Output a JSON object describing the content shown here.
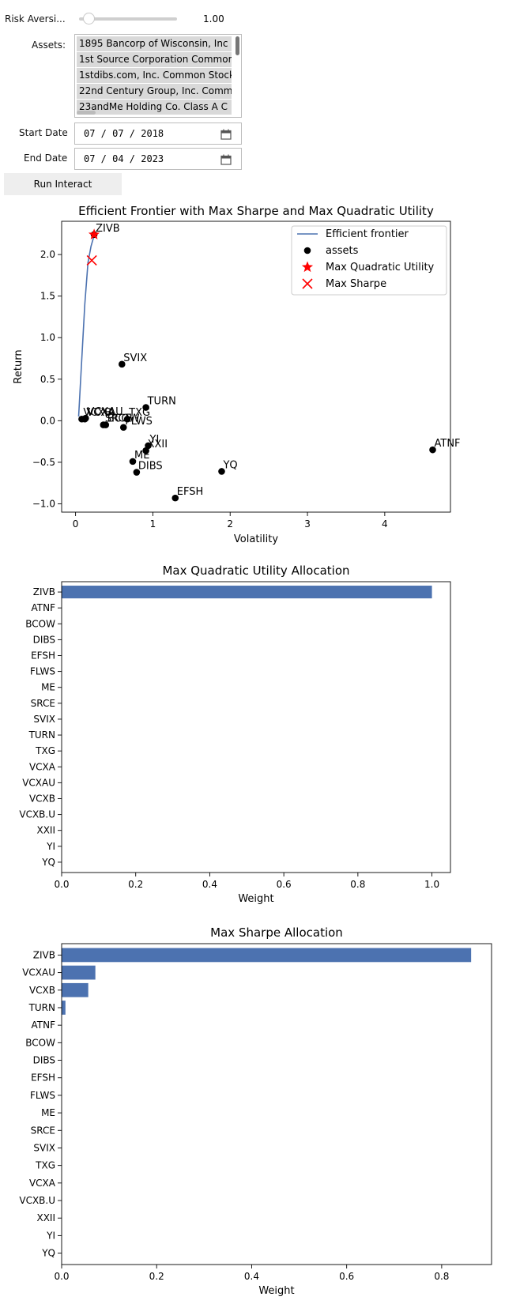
{
  "controls": {
    "risk_label": "Risk Aversi...",
    "risk_value": "1.00",
    "risk_fraction": 0.1,
    "assets_label": "Assets:",
    "assets": [
      "1895 Bancorp of Wisconsin, Inc",
      "1st Source Corporation Common",
      "1stdibs.com, Inc. Common Stock",
      "22nd Century Group, Inc. Comm",
      "23andMe Holding Co. Class A C"
    ],
    "start_label": "Start Date",
    "start_value": "07 / 07 / 2018",
    "end_label": "End Date",
    "end_value": "07 / 04 / 2023",
    "run_label": "Run Interact",
    "calendar_icon": "calendar-icon"
  },
  "colors": {
    "frontier": "#4c72b0",
    "bar": "#4c72b0",
    "marker_red": "#ff0000",
    "point": "#000000"
  },
  "chart_data": [
    {
      "type": "scatter",
      "title": "Efficient Frontier with Max Sharpe and Max Quadratic Utility",
      "xlabel": "Volatility",
      "ylabel": "Return",
      "xlim": [
        -0.18,
        4.85
      ],
      "ylim": [
        -1.1,
        2.4
      ],
      "xticks": [
        0,
        1,
        2,
        3,
        4
      ],
      "xtick_labels": [
        "0",
        "1",
        "2",
        "3",
        "4"
      ],
      "yticks": [
        -1.0,
        -0.5,
        0.0,
        0.5,
        1.0,
        1.5,
        2.0
      ],
      "ytick_labels": [
        "−1.0",
        "−0.5",
        "0.0",
        "0.5",
        "1.0",
        "1.5",
        "2.0"
      ],
      "grid": false,
      "legend_position": "top-right",
      "legend": [
        "Efficient frontier",
        "assets",
        "Max Quadratic Utility",
        "Max Sharpe"
      ],
      "frontier": [
        [
          0.04,
          0.05
        ],
        [
          0.06,
          0.4
        ],
        [
          0.09,
          0.9
        ],
        [
          0.12,
          1.4
        ],
        [
          0.16,
          1.9
        ],
        [
          0.2,
          2.1
        ],
        [
          0.24,
          2.23
        ]
      ],
      "assets": [
        {
          "label": "ZIVB",
          "x": 0.24,
          "y": 2.24
        },
        {
          "label": "SVIX",
          "x": 0.6,
          "y": 0.68
        },
        {
          "label": "TURN",
          "x": 0.91,
          "y": 0.16
        },
        {
          "label": "VCXB",
          "x": 0.08,
          "y": 0.02
        },
        {
          "label": "VCXA",
          "x": 0.12,
          "y": 0.02
        },
        {
          "label": "VCXAU",
          "x": 0.13,
          "y": 0.03
        },
        {
          "label": "TXG",
          "x": 0.67,
          "y": 0.02
        },
        {
          "label": "SRCE",
          "x": 0.36,
          "y": -0.05
        },
        {
          "label": "BCOW",
          "x": 0.39,
          "y": -0.05
        },
        {
          "label": "FLWS",
          "x": 0.62,
          "y": -0.08
        },
        {
          "label": "YI",
          "x": 0.94,
          "y": -0.3
        },
        {
          "label": "XXII",
          "x": 0.91,
          "y": -0.36
        },
        {
          "label": "ME",
          "x": 0.74,
          "y": -0.49
        },
        {
          "label": "DIBS",
          "x": 0.79,
          "y": -0.62
        },
        {
          "label": "YQ",
          "x": 1.89,
          "y": -0.61
        },
        {
          "label": "EFSH",
          "x": 1.29,
          "y": -0.93
        },
        {
          "label": "ATNF",
          "x": 4.62,
          "y": -0.35
        }
      ],
      "max_quadratic_utility": {
        "x": 0.24,
        "y": 2.24
      },
      "max_sharpe": {
        "x": 0.21,
        "y": 1.93
      }
    },
    {
      "type": "bar",
      "orientation": "horizontal",
      "title": "Max Quadratic Utility Allocation",
      "xlabel": "Weight",
      "xlim": [
        0,
        1.05
      ],
      "xticks": [
        0.0,
        0.2,
        0.4,
        0.6,
        0.8,
        1.0
      ],
      "xtick_labels": [
        "0.0",
        "0.2",
        "0.4",
        "0.6",
        "0.8",
        "1.0"
      ],
      "categories": [
        "ZIVB",
        "ATNF",
        "BCOW",
        "DIBS",
        "EFSH",
        "FLWS",
        "ME",
        "SRCE",
        "SVIX",
        "TURN",
        "TXG",
        "VCXA",
        "VCXAU",
        "VCXB",
        "VCXB.U",
        "XXII",
        "YI",
        "YQ"
      ],
      "values": [
        1.0,
        0,
        0,
        0,
        0,
        0,
        0,
        0,
        0,
        0,
        0,
        0,
        0,
        0,
        0,
        0,
        0,
        0
      ]
    },
    {
      "type": "bar",
      "orientation": "horizontal",
      "title": "Max Sharpe Allocation",
      "xlabel": "Weight",
      "xlim": [
        0,
        0.905
      ],
      "xticks": [
        0.0,
        0.2,
        0.4,
        0.6,
        0.8
      ],
      "xtick_labels": [
        "0.0",
        "0.2",
        "0.4",
        "0.6",
        "0.8"
      ],
      "categories": [
        "ZIVB",
        "VCXAU",
        "VCXB",
        "TURN",
        "ATNF",
        "BCOW",
        "DIBS",
        "EFSH",
        "FLWS",
        "ME",
        "SRCE",
        "SVIX",
        "TXG",
        "VCXA",
        "VCXB.U",
        "XXII",
        "YI",
        "YQ"
      ],
      "values": [
        0.862,
        0.071,
        0.056,
        0.008,
        0,
        0,
        0,
        0,
        0,
        0,
        0,
        0,
        0,
        0,
        0,
        0,
        0,
        0
      ]
    }
  ]
}
